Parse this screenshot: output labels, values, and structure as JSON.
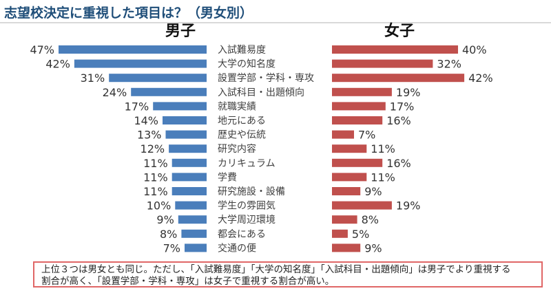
{
  "page": {
    "title": "志望校決定に重視した項目は？（男女別）"
  },
  "colors": {
    "male_bar": "#4a7ebb",
    "female_bar": "#c0504d",
    "title": "#1f4e79",
    "note_border": "#e06666"
  },
  "chart_data": {
    "type": "bar",
    "orientation": "horizontal",
    "layout": "butterfly",
    "categories": [
      "入試難易度",
      "大学の知名度",
      "設置学部・学科・専攻",
      "入試科目・出題傾向",
      "就職実績",
      "地元にある",
      "歴史や伝統",
      "研究内容",
      "カリキュラム",
      "学費",
      "研究施設・設備",
      "学生の雰囲気",
      "大学周辺環境",
      "都会にある",
      "交通の便"
    ],
    "series": [
      {
        "name": "男子",
        "values": [
          47,
          42,
          31,
          24,
          17,
          14,
          13,
          12,
          11,
          11,
          11,
          10,
          9,
          8,
          7
        ],
        "labels": [
          "47%",
          "42%",
          "31%",
          "24%",
          "17%",
          "14%",
          "13%",
          "12%",
          "11%",
          "11%",
          "11%",
          "10%",
          "9%",
          "8%",
          "7%"
        ]
      },
      {
        "name": "女子",
        "values": [
          40,
          32,
          42,
          19,
          17,
          16,
          7,
          11,
          16,
          11,
          9,
          19,
          8,
          5,
          9
        ],
        "labels": [
          "40%",
          "32%",
          "42%",
          "19%",
          "17%",
          "16%",
          "7%",
          "11%",
          "16%",
          "11%",
          "9%",
          "19%",
          "8%",
          "5%",
          "9%"
        ]
      }
    ],
    "unit": "%",
    "xlim": [
      0,
      47
    ],
    "grid": false
  },
  "note": {
    "text": "上位３つは男女とも同じ。ただし、「入試難易度」「大学の知名度」「入試科目・出題傾向」は男子でより重視する\n割合が高く、「設置学部・学科・専攻」は女子で重視する割合が高い。"
  }
}
